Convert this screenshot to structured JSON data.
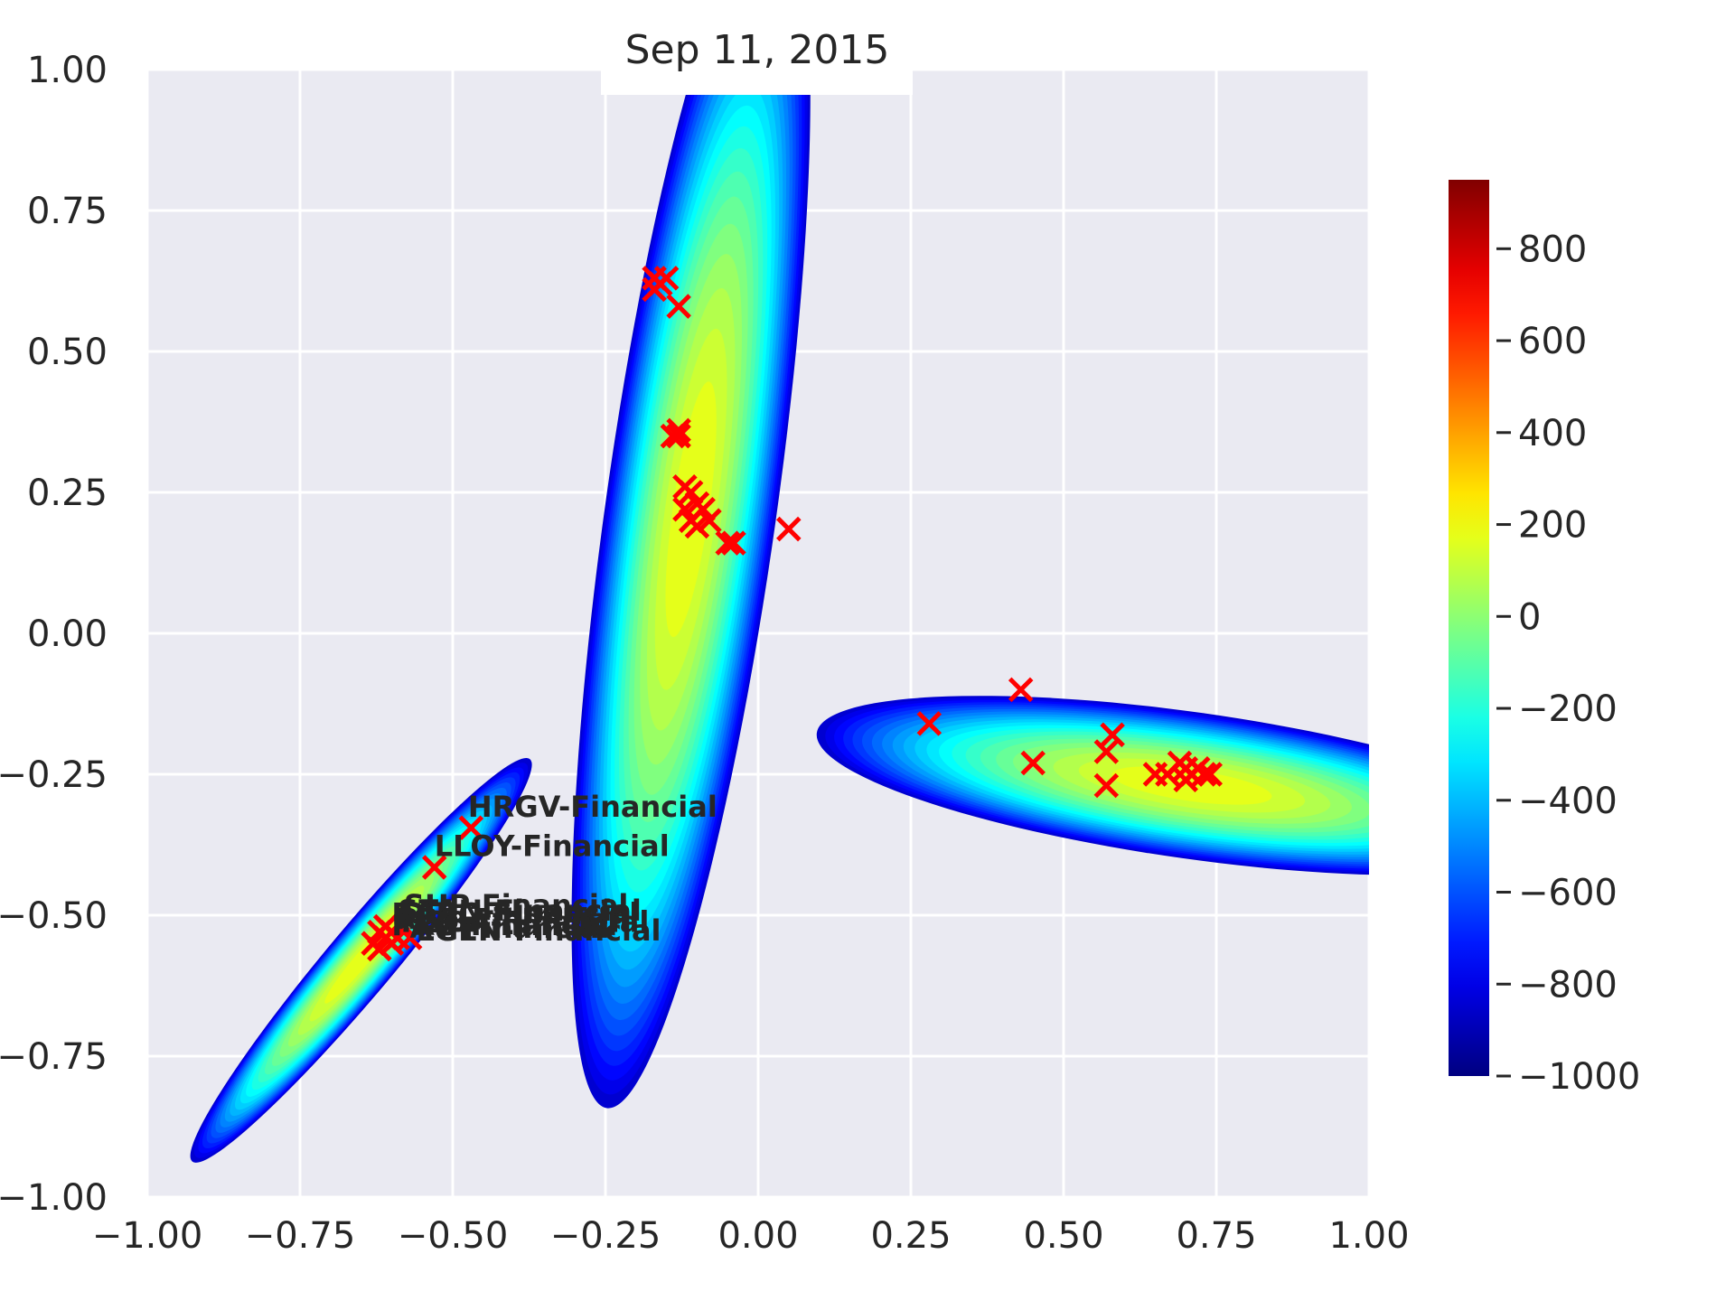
{
  "chart_data": {
    "type": "contour-scatter",
    "title": "Sep 11, 2015",
    "xlim": [
      -1.0,
      1.0
    ],
    "ylim": [
      -1.0,
      1.0
    ],
    "xticks": [
      "−1.00",
      "−0.75",
      "−0.50",
      "−0.25",
      "0.00",
      "0.25",
      "0.50",
      "0.75",
      "1.00"
    ],
    "yticks": [
      "1.00",
      "0.75",
      "0.50",
      "0.25",
      "0.00",
      "−0.25",
      "−0.50",
      "−0.75",
      "−1.00"
    ],
    "grid": true,
    "colorbar": {
      "range": [
        -1000,
        950
      ],
      "colormap": "jet",
      "tick_values": [
        800,
        600,
        400,
        200,
        0,
        -200,
        -400,
        -600,
        -800,
        -1000
      ],
      "tick_labels": [
        "800",
        "600",
        "400",
        "200",
        "0",
        "−200",
        "−400",
        "−600",
        "−800",
        "−1000"
      ]
    },
    "clusters": [
      {
        "center": [
          -0.11,
          0.22
        ],
        "angle_deg": 82,
        "semi_major": 0.99,
        "semi_minor": 0.14
      },
      {
        "center": [
          0.71,
          -0.27
        ],
        "angle_deg": -8,
        "semi_major": 0.62,
        "semi_minor": 0.12
      },
      {
        "center": [
          -0.65,
          -0.58
        ],
        "angle_deg": 50,
        "semi_major": 0.43,
        "semi_minor": 0.055
      }
    ],
    "points": [
      [
        -0.17,
        0.63
      ],
      [
        -0.16,
        0.62
      ],
      [
        -0.15,
        0.63
      ],
      [
        -0.17,
        0.61
      ],
      [
        -0.13,
        0.58
      ],
      [
        -0.14,
        0.35
      ],
      [
        -0.13,
        0.35
      ],
      [
        -0.13,
        0.36
      ],
      [
        -0.12,
        0.26
      ],
      [
        -0.11,
        0.25
      ],
      [
        -0.12,
        0.22
      ],
      [
        -0.1,
        0.23
      ],
      [
        -0.11,
        0.2
      ],
      [
        -0.09,
        0.22
      ],
      [
        -0.08,
        0.2
      ],
      [
        -0.1,
        0.19
      ],
      [
        -0.05,
        0.16
      ],
      [
        -0.04,
        0.16
      ],
      [
        0.05,
        0.185
      ],
      [
        0.28,
        -0.16
      ],
      [
        0.43,
        -0.1
      ],
      [
        0.45,
        -0.23
      ],
      [
        0.57,
        -0.21
      ],
      [
        0.58,
        -0.18
      ],
      [
        0.57,
        -0.27
      ],
      [
        0.65,
        -0.25
      ],
      [
        0.67,
        -0.25
      ],
      [
        0.69,
        -0.23
      ],
      [
        0.7,
        -0.24
      ],
      [
        0.71,
        -0.25
      ],
      [
        0.7,
        -0.26
      ],
      [
        0.72,
        -0.24
      ],
      [
        0.73,
        -0.25
      ],
      [
        0.74,
        -0.25
      ],
      [
        -0.47,
        -0.345
      ],
      [
        -0.53,
        -0.415
      ],
      [
        -0.58,
        -0.52
      ],
      [
        -0.6,
        -0.53
      ],
      [
        -0.61,
        -0.54
      ],
      [
        -0.62,
        -0.53
      ],
      [
        -0.6,
        -0.55
      ],
      [
        -0.62,
        -0.56
      ],
      [
        -0.63,
        -0.55
      ],
      [
        -0.59,
        -0.54
      ],
      [
        -0.57,
        -0.54
      ],
      [
        -0.61,
        -0.52
      ]
    ],
    "annotations": [
      {
        "text": "HRGV-Financial",
        "x": -0.475,
        "y": -0.325
      },
      {
        "text": "LLOY-Financial",
        "x": -0.53,
        "y": -0.395
      },
      {
        "text": "SHP-Financial",
        "x": -0.58,
        "y": -0.5
      },
      {
        "text": "STAN-Financial",
        "x": -0.59,
        "y": -0.51
      },
      {
        "text": "BARC-Financial",
        "x": -0.6,
        "y": -0.515
      },
      {
        "text": "RBS-Financial",
        "x": -0.595,
        "y": -0.525
      },
      {
        "text": "HSBA-Financial",
        "x": -0.585,
        "y": -0.53
      },
      {
        "text": "PRU-Financial",
        "x": -0.6,
        "y": -0.535
      },
      {
        "text": "AV-Financial",
        "x": -0.57,
        "y": -0.54
      },
      {
        "text": "LGEN-Financial",
        "x": -0.56,
        "y": -0.545
      }
    ]
  }
}
